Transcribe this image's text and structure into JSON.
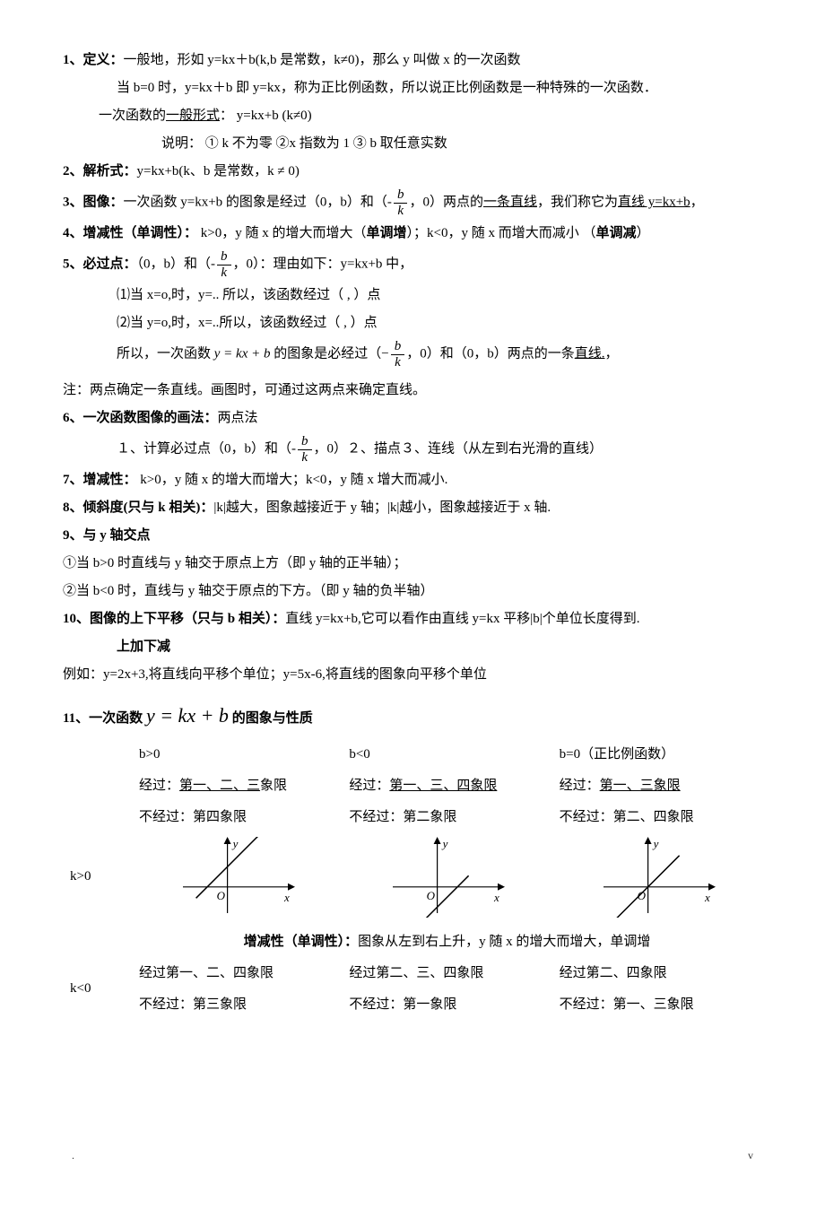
{
  "s1": {
    "lead": "1、定义：",
    "l1": "一般地，形如 y=kx＋b(k,b 是常数，k≠0)，那么 y 叫做 x 的一次函数",
    "l2": "当 b=0 时，y=kx＋b 即 y=kx，称为正比例函数，所以说正比例函数是一种特殊的一次函数．",
    "l3a": "一次函数的",
    "l3u": "一般形式",
    "l3b": "：  y=kx+b (k≠0)",
    "l4": "说明： ① k 不为零  ②x 指数为 1  ③ b 取任意实数"
  },
  "s2": {
    "lead": "2、解析式：",
    "body": "y=kx+b(k、b 是常数，k ≠ 0)"
  },
  "s3": {
    "lead": "3、图像：",
    "a": "一次函数 y=kx+b 的图象是经过（0，b）和（-",
    "b": "，0）两点的",
    "u1": "一条直线",
    "c": "，我们称它为",
    "u2": "直线 y=kx+b",
    "p": "，"
  },
  "s4": {
    "lead": "4、增减性（单调性）：",
    "a": " k>0，y 随 x 的增大而增大（",
    "b1": "单调增",
    "b": "）；k<0，y 随 x 而增大而减小 （",
    "b2": "单调减",
    "c": "）"
  },
  "s5": {
    "lead": "5、必过点：",
    "a": "（0，b）和（-",
    "b": "，0）：理由如下：y=kx+b 中，",
    "l1": "⑴当 x=o,时，y=.. 所以，该函数经过（ , ）点",
    "l2": "⑵当 y=o,时，x=..所以，该函数经过（ , ）点",
    "l3a": "所以，一次函数 ",
    "l3f": "y = kx + b",
    "l3b": " 的图象是必经过（",
    "l3c": "，0）和（0，b）两点的一条",
    "l3u": "直线.",
    "l3d": "，"
  },
  "note": "注：两点确定一条直线。画图时，可通过这两点来确定直线。",
  "s6": {
    "lead": "6、一次函数图像的画法：",
    "t": "两点法",
    "l1a": "１、计算必过点（0，b）和（-",
    "l1b": "，0）２、描点３、连线（从左到右光滑的直线）"
  },
  "s7": {
    "lead": "7、增减性：",
    "body": " k>0，y 随 x 的增大而增大；k<0，y 随 x 增大而减小."
  },
  "s8": {
    "lead": "8、倾斜度(只与 k 相关)：",
    "body": "|k|越大，图象越接近于 y 轴；|k|越小，图象越接近于 x 轴."
  },
  "s9": {
    "lead": "9、与 y 轴交点",
    "l1": "①当 b>0 时直线与 y 轴交于原点上方（即 y 轴的正半轴）；",
    "l2": "②当 b<0 时，直线与 y 轴交于原点的下方。（即 y 轴的负半轴）"
  },
  "s10": {
    "lead": "10、图像的上下平移（只与 b 相关）：",
    "body": "直线 y=kx+b,它可以看作由直线 y=kx 平移|b|个单位长度得到.",
    "sub": "上加下减",
    "ex": "例如：y=2x+3,将直线向平移个单位；y=5x-6,将直线的图象向平移个单位"
  },
  "s11": {
    "lead": "11、一次函数 ",
    "formula": "y = kx + b",
    "tail": " 的图象与性质"
  },
  "table": {
    "headers": {
      "c1": "b>0",
      "c2": "b<0",
      "c3": "b=0（正比例函数）"
    },
    "kpos": "k>0",
    "kneg": "k<0",
    "r1": {
      "c1a": "经过：",
      "c1u": "第一、二、三",
      "c1b": "象限",
      "c2a": "经过：",
      "c2u": "第一、三、四象限",
      "c2b": "",
      "c3a": " 经过：",
      "c3u": "第一、三象限",
      "c3b": ""
    },
    "r2": {
      "c1": "不经过：第四象限",
      "c2": "不经过：第二象限",
      "c3": "不经过：第二、四象限"
    },
    "mid": {
      "lead": "增减性（单调性）：",
      "body": "图象从左到右上升，y 随 x 的增大而增大，单调增"
    },
    "r3": {
      "c1": "经过第一、二、四象限",
      "c2": "经过第二、三、四象限",
      "c3": "经过第二、四象限"
    },
    "r4": {
      "c1": "不经过：第三象限",
      "c2": "不经过：第一象限",
      "c3": "不经过：第一、三象限"
    },
    "axis": {
      "x": "x",
      "y": "y",
      "o": "O"
    }
  },
  "footer": {
    "l": ".",
    "r": "v"
  },
  "style": {
    "axis_width": 130,
    "axis_height": 90,
    "stroke": "#000",
    "line_width": 1.2,
    "shifts": {
      "c1": 0.25,
      "c2": -0.25,
      "c3": 0
    }
  }
}
